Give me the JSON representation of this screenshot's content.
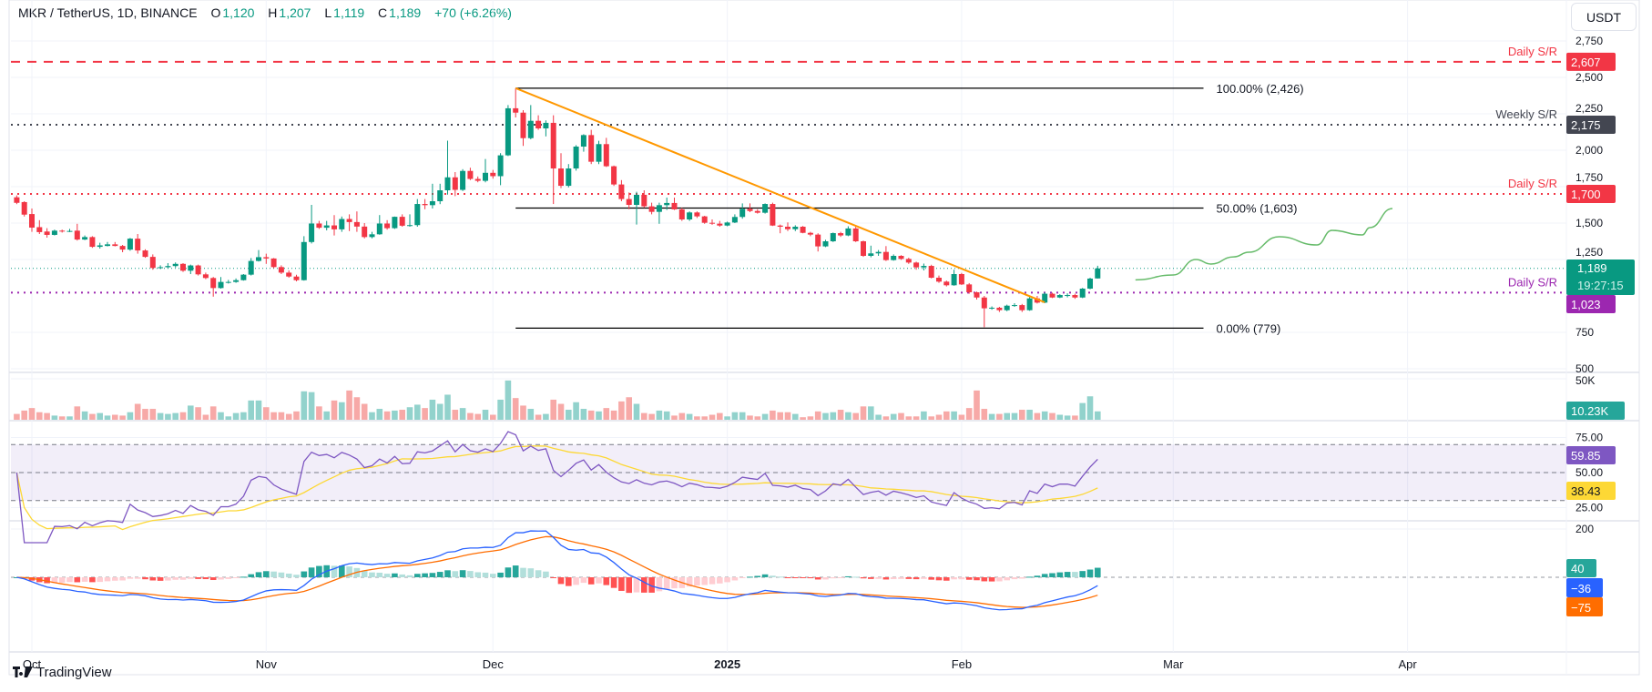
{
  "header": {
    "symbol": "MKR / TetherUS, 1D, BINANCE",
    "o_label": "O",
    "o": "1,120",
    "h_label": "H",
    "h": "1,207",
    "l_label": "L",
    "l": "1,119",
    "c_label": "C",
    "c": "1,189",
    "change": "+70 (+6.26%)"
  },
  "currency_button": "USDT",
  "branding": "TradingView",
  "colors": {
    "up": "#089981",
    "down": "#f23645",
    "volume_up": "#92d2cc",
    "volume_down": "#f7a9a7",
    "daily_sr": "#f23645",
    "weekly_sr": "#434651",
    "daily_sr_support": "#9c27b0",
    "trendline": "#ff9800",
    "projection": "#66bb6a",
    "rsi": "#7e57c2",
    "rsi_ma": "#fdd835",
    "macd": "#2962ff",
    "signal": "#ff6d00",
    "hist_up_strong": "#26a69a",
    "hist_up_weak": "#b2dfdb",
    "hist_down_strong": "#ff5252",
    "hist_down_weak": "#ffcdd2"
  },
  "chart_data": {
    "type": "candlestick",
    "title": "MKR / TetherUS, 1D, BINANCE",
    "columns": [
      "date",
      "open",
      "high",
      "low",
      "close",
      "volume_k"
    ],
    "candles": [
      [
        "2024-09-29",
        1677,
        1690,
        1630,
        1639,
        7.1
      ],
      [
        "2024-09-30",
        1644,
        1650,
        1545,
        1558,
        11.2
      ],
      [
        "2024-10-01",
        1562,
        1600,
        1440,
        1469,
        14.3
      ],
      [
        "2024-10-02",
        1472,
        1520,
        1425,
        1438,
        9.2
      ],
      [
        "2024-10-03",
        1442,
        1465,
        1400,
        1419,
        8.2
      ],
      [
        "2024-10-04",
        1419,
        1455,
        1415,
        1448,
        5.1
      ],
      [
        "2024-10-05",
        1448,
        1455,
        1435,
        1444,
        4.1
      ],
      [
        "2024-10-06",
        1444,
        1460,
        1438,
        1446,
        4.1
      ],
      [
        "2024-10-07",
        1448,
        1495,
        1380,
        1387,
        16.3
      ],
      [
        "2024-10-08",
        1387,
        1415,
        1383,
        1404,
        10.2
      ],
      [
        "2024-10-09",
        1404,
        1410,
        1330,
        1337,
        7.1
      ],
      [
        "2024-10-10",
        1337,
        1365,
        1325,
        1347,
        8.2
      ],
      [
        "2024-10-11",
        1343,
        1370,
        1340,
        1354,
        5.1
      ],
      [
        "2024-10-12",
        1354,
        1370,
        1340,
        1343,
        6.1
      ],
      [
        "2024-10-13",
        1343,
        1350,
        1300,
        1318,
        5.1
      ],
      [
        "2024-10-14",
        1318,
        1398,
        1310,
        1393,
        9.2
      ],
      [
        "2024-10-15",
        1393,
        1425,
        1290,
        1312,
        19.4
      ],
      [
        "2024-10-16",
        1312,
        1320,
        1262,
        1268,
        13.3
      ],
      [
        "2024-10-17",
        1268,
        1285,
        1180,
        1192,
        13.3
      ],
      [
        "2024-10-18",
        1192,
        1210,
        1185,
        1197,
        8.2
      ],
      [
        "2024-10-19",
        1197,
        1225,
        1190,
        1205,
        7.1
      ],
      [
        "2024-10-20",
        1205,
        1230,
        1195,
        1220,
        8.2
      ],
      [
        "2024-10-21",
        1220,
        1225,
        1165,
        1173,
        9.2
      ],
      [
        "2024-10-22",
        1173,
        1215,
        1150,
        1209,
        17.3
      ],
      [
        "2024-10-23",
        1209,
        1215,
        1140,
        1148,
        15.3
      ],
      [
        "2024-10-24",
        1148,
        1160,
        1115,
        1123,
        6.1
      ],
      [
        "2024-10-25",
        1123,
        1130,
        995,
        1054,
        16.3
      ],
      [
        "2024-10-26",
        1054,
        1130,
        1050,
        1096,
        9.2
      ],
      [
        "2024-10-27",
        1096,
        1110,
        1085,
        1096,
        4.1
      ],
      [
        "2024-10-28",
        1096,
        1120,
        1090,
        1108,
        8.2
      ],
      [
        "2024-10-29",
        1108,
        1150,
        1105,
        1146,
        9.2
      ],
      [
        "2024-10-30",
        1146,
        1260,
        1140,
        1240,
        23.5
      ],
      [
        "2024-10-31",
        1240,
        1315,
        1236,
        1266,
        23.5
      ],
      [
        "2024-11-01",
        1266,
        1290,
        1220,
        1257,
        15.3
      ],
      [
        "2024-11-02",
        1257,
        1260,
        1190,
        1198,
        9.2
      ],
      [
        "2024-11-03",
        1198,
        1210,
        1150,
        1160,
        9.2
      ],
      [
        "2024-11-04",
        1160,
        1175,
        1125,
        1133,
        7.1
      ],
      [
        "2024-11-05",
        1133,
        1145,
        1100,
        1108,
        10.2
      ],
      [
        "2024-11-06",
        1108,
        1410,
        1105,
        1370,
        34.7
      ],
      [
        "2024-11-07",
        1370,
        1625,
        1360,
        1497,
        33.7
      ],
      [
        "2024-11-08",
        1497,
        1515,
        1460,
        1468,
        16.3
      ],
      [
        "2024-11-09",
        1468,
        1515,
        1450,
        1484,
        10.2
      ],
      [
        "2024-11-10",
        1484,
        1555,
        1415,
        1457,
        23.5
      ],
      [
        "2024-11-11",
        1457,
        1545,
        1440,
        1528,
        21.4
      ],
      [
        "2024-11-12",
        1528,
        1560,
        1445,
        1507,
        35.7
      ],
      [
        "2024-11-13",
        1507,
        1580,
        1440,
        1476,
        27.5
      ],
      [
        "2024-11-14",
        1476,
        1500,
        1395,
        1404,
        19.4
      ],
      [
        "2024-11-15",
        1404,
        1440,
        1395,
        1423,
        9.2
      ],
      [
        "2024-11-16",
        1423,
        1555,
        1420,
        1497,
        13.3
      ],
      [
        "2024-11-17",
        1497,
        1520,
        1455,
        1465,
        10.2
      ],
      [
        "2024-11-18",
        1465,
        1545,
        1460,
        1543,
        11.2
      ],
      [
        "2024-11-19",
        1543,
        1560,
        1475,
        1482,
        12.2
      ],
      [
        "2024-11-20",
        1482,
        1560,
        1475,
        1486,
        15.3
      ],
      [
        "2024-11-21",
        1486,
        1665,
        1475,
        1631,
        18.4
      ],
      [
        "2024-11-22",
        1631,
        1665,
        1595,
        1623,
        14.3
      ],
      [
        "2024-11-23",
        1623,
        1770,
        1600,
        1650,
        24.5
      ],
      [
        "2024-11-24",
        1650,
        1770,
        1630,
        1725,
        19.4
      ],
      [
        "2024-11-25",
        1725,
        2066,
        1695,
        1814,
        30.6
      ],
      [
        "2024-11-26",
        1814,
        1850,
        1685,
        1728,
        12.2
      ],
      [
        "2024-11-27",
        1728,
        1870,
        1720,
        1858,
        14.3
      ],
      [
        "2024-11-28",
        1858,
        1880,
        1795,
        1803,
        8.2
      ],
      [
        "2024-11-29",
        1803,
        1820,
        1780,
        1790,
        7.1
      ],
      [
        "2024-11-30",
        1790,
        1940,
        1780,
        1845,
        12.2
      ],
      [
        "2024-12-01",
        1845,
        1865,
        1805,
        1822,
        6.1
      ],
      [
        "2024-12-02",
        1822,
        1980,
        1760,
        1965,
        24.5
      ],
      [
        "2024-12-03",
        1965,
        2310,
        1960,
        2288,
        47.9
      ],
      [
        "2024-12-04",
        2288,
        2426,
        2225,
        2258,
        26.5
      ],
      [
        "2024-12-05",
        2258,
        2275,
        2030,
        2083,
        17.3
      ],
      [
        "2024-12-06",
        2083,
        2310,
        2075,
        2202,
        13.3
      ],
      [
        "2024-12-07",
        2202,
        2240,
        2140,
        2150,
        6.1
      ],
      [
        "2024-12-08",
        2150,
        2205,
        2095,
        2188,
        7.1
      ],
      [
        "2024-12-09",
        2188,
        2240,
        1631,
        1875,
        24.5
      ],
      [
        "2024-12-10",
        1875,
        1980,
        1740,
        1756,
        19.4
      ],
      [
        "2024-12-11",
        1756,
        1905,
        1745,
        1875,
        12.2
      ],
      [
        "2024-12-12",
        1875,
        2035,
        1860,
        2025,
        21.4
      ],
      [
        "2024-12-13",
        2025,
        2110,
        1990,
        2104,
        13.3
      ],
      [
        "2024-12-14",
        2104,
        2140,
        1905,
        1921,
        11.2
      ],
      [
        "2024-12-15",
        1921,
        2065,
        1905,
        2042,
        10.2
      ],
      [
        "2024-12-16",
        2042,
        2085,
        1885,
        1890,
        14.3
      ],
      [
        "2024-12-17",
        1890,
        1895,
        1755,
        1765,
        11.2
      ],
      [
        "2024-12-18",
        1765,
        1795,
        1650,
        1665,
        22.4
      ],
      [
        "2024-12-19",
        1665,
        1710,
        1595,
        1625,
        27.5
      ],
      [
        "2024-12-20",
        1625,
        1715,
        1490,
        1694,
        19.4
      ],
      [
        "2024-12-21",
        1694,
        1725,
        1605,
        1615,
        8.2
      ],
      [
        "2024-12-22",
        1615,
        1640,
        1560,
        1577,
        7.1
      ],
      [
        "2024-12-23",
        1577,
        1640,
        1495,
        1623,
        11.2
      ],
      [
        "2024-12-24",
        1623,
        1675,
        1590,
        1638,
        10.2
      ],
      [
        "2024-12-25",
        1638,
        1675,
        1590,
        1594,
        5.1
      ],
      [
        "2024-12-26",
        1594,
        1605,
        1515,
        1525,
        8.2
      ],
      [
        "2024-12-27",
        1525,
        1580,
        1515,
        1573,
        7.1
      ],
      [
        "2024-12-28",
        1573,
        1580,
        1535,
        1546,
        4.1
      ],
      [
        "2024-12-29",
        1546,
        1550,
        1495,
        1502,
        4.1
      ],
      [
        "2024-12-30",
        1502,
        1525,
        1488,
        1496,
        6.1
      ],
      [
        "2024-12-31",
        1496,
        1515,
        1475,
        1483,
        8.2
      ],
      [
        "2025-01-01",
        1483,
        1510,
        1478,
        1504,
        4.1
      ],
      [
        "2025-01-02",
        1504,
        1560,
        1500,
        1542,
        9.2
      ],
      [
        "2025-01-03",
        1542,
        1635,
        1530,
        1598,
        9.2
      ],
      [
        "2025-01-04",
        1598,
        1635,
        1575,
        1583,
        5.1
      ],
      [
        "2025-01-05",
        1583,
        1595,
        1565,
        1571,
        4.1
      ],
      [
        "2025-01-06",
        1571,
        1635,
        1565,
        1631,
        7.1
      ],
      [
        "2025-01-07",
        1631,
        1640,
        1480,
        1483,
        11.2
      ],
      [
        "2025-01-08",
        1483,
        1490,
        1430,
        1475,
        9.2
      ],
      [
        "2025-01-09",
        1475,
        1505,
        1445,
        1458,
        9.2
      ],
      [
        "2025-01-10",
        1458,
        1485,
        1445,
        1475,
        7.1
      ],
      [
        "2025-01-11",
        1475,
        1480,
        1430,
        1433,
        3.1
      ],
      [
        "2025-01-12",
        1433,
        1440,
        1410,
        1421,
        4.1
      ],
      [
        "2025-01-13",
        1421,
        1430,
        1305,
        1340,
        10.2
      ],
      [
        "2025-01-14",
        1340,
        1385,
        1335,
        1375,
        8.2
      ],
      [
        "2025-01-15",
        1375,
        1435,
        1370,
        1431,
        9.2
      ],
      [
        "2025-01-16",
        1431,
        1440,
        1405,
        1415,
        12.2
      ],
      [
        "2025-01-17",
        1415,
        1478,
        1410,
        1463,
        9.2
      ],
      [
        "2025-01-18",
        1463,
        1475,
        1370,
        1375,
        8.2
      ],
      [
        "2025-01-19",
        1375,
        1380,
        1268,
        1275,
        16.3
      ],
      [
        "2025-01-20",
        1275,
        1345,
        1265,
        1292,
        16.3
      ],
      [
        "2025-01-21",
        1292,
        1315,
        1275,
        1302,
        6.1
      ],
      [
        "2025-01-22",
        1302,
        1342,
        1240,
        1246,
        4.1
      ],
      [
        "2025-01-23",
        1246,
        1285,
        1242,
        1275,
        7.1
      ],
      [
        "2025-01-24",
        1275,
        1280,
        1248,
        1254,
        8.2
      ],
      [
        "2025-01-25",
        1254,
        1262,
        1220,
        1229,
        4.1
      ],
      [
        "2025-01-26",
        1229,
        1235,
        1180,
        1196,
        4.1
      ],
      [
        "2025-01-27",
        1196,
        1222,
        1175,
        1206,
        10.2
      ],
      [
        "2025-01-28",
        1206,
        1214,
        1120,
        1125,
        4.1
      ],
      [
        "2025-01-29",
        1125,
        1140,
        1090,
        1098,
        6.1
      ],
      [
        "2025-01-30",
        1098,
        1105,
        1065,
        1073,
        10.2
      ],
      [
        "2025-01-31",
        1073,
        1180,
        1070,
        1150,
        10.2
      ],
      [
        "2025-02-01",
        1150,
        1158,
        1075,
        1079,
        6.1
      ],
      [
        "2025-02-02",
        1079,
        1088,
        1015,
        1025,
        14.3
      ],
      [
        "2025-02-03",
        1025,
        1030,
        975,
        989,
        35.7
      ],
      [
        "2025-02-04",
        989,
        1000,
        785,
        915,
        13.3
      ],
      [
        "2025-02-05",
        915,
        928,
        905,
        919,
        7.1
      ],
      [
        "2025-02-06",
        919,
        925,
        890,
        902,
        7.1
      ],
      [
        "2025-02-07",
        902,
        940,
        895,
        933,
        8.2
      ],
      [
        "2025-02-08",
        933,
        950,
        925,
        937,
        8.2
      ],
      [
        "2025-02-09",
        937,
        945,
        890,
        902,
        12.2
      ],
      [
        "2025-02-10",
        902,
        995,
        898,
        983,
        12.2
      ],
      [
        "2025-02-11",
        983,
        1000,
        948,
        954,
        8.2
      ],
      [
        "2025-02-12",
        954,
        1025,
        950,
        1015,
        10.2
      ],
      [
        "2025-02-13",
        1015,
        1022,
        985,
        989,
        8.2
      ],
      [
        "2025-02-14",
        989,
        1012,
        985,
        1006,
        6.1
      ],
      [
        "2025-02-15",
        1006,
        1018,
        990,
        1006,
        5.1
      ],
      [
        "2025-02-16",
        1006,
        1015,
        980,
        989,
        5.1
      ],
      [
        "2025-02-17",
        989,
        1055,
        985,
        1050,
        20.4
      ],
      [
        "2025-02-18",
        1050,
        1125,
        1045,
        1119,
        28.6
      ],
      [
        "2025-02-19",
        1120,
        1207,
        1119,
        1189,
        10.23
      ]
    ],
    "price_axis": {
      "ticks": [
        2750,
        2500,
        2250,
        2000,
        1750,
        1500,
        1250,
        750,
        500
      ],
      "labels": [
        "2,750",
        "2,500",
        "2,250",
        "2,000",
        "1,750",
        "1,500",
        "1,250",
        "750",
        "500"
      ]
    },
    "time_axis": [
      {
        "date": "2024-10-01",
        "label": "Oct"
      },
      {
        "date": "2024-11-01",
        "label": "Nov"
      },
      {
        "date": "2024-12-01",
        "label": "Dec"
      },
      {
        "date": "2025-01-01",
        "label": "2025",
        "bold": true
      },
      {
        "date": "2025-02-01",
        "label": "Feb"
      },
      {
        "date": "2025-03-01",
        "label": "Mar"
      },
      {
        "date": "2025-04-01",
        "label": "Apr"
      }
    ],
    "levels": [
      {
        "label": "Daily S/R",
        "price": 2607,
        "tag": "2,607",
        "style": "dashed",
        "color": "#f23645"
      },
      {
        "label": "Weekly S/R",
        "price": 2175,
        "tag": "2,175",
        "style": "dotted",
        "color": "#434651"
      },
      {
        "label": "Daily S/R",
        "price": 1700,
        "tag": "1,700",
        "style": "dotted",
        "color": "#f23645"
      },
      {
        "label": "Daily S/R",
        "price": 1023,
        "tag": "1,023",
        "style": "dotted",
        "color": "#9c27b0"
      }
    ],
    "last_price": {
      "price": 1189,
      "tag": "1,189",
      "countdown": "19:27:15"
    },
    "fibonacci": {
      "start": "2024-12-04",
      "end": "2025-03-05",
      "levels": [
        {
          "price": 2426,
          "label": "100.00% (2,426)"
        },
        {
          "price": 1603,
          "label": "50.00% (1,603)"
        },
        {
          "price": 779,
          "label": "0.00% (779)"
        }
      ]
    },
    "trendline": {
      "from": {
        "date": "2024-12-04",
        "price": 2426
      },
      "to": {
        "date": "2025-02-12",
        "price": 956
      }
    },
    "projection": [
      [
        "2025-02-24",
        1110
      ],
      [
        "2025-03-01",
        1144
      ],
      [
        "2025-03-04",
        1250
      ],
      [
        "2025-03-06",
        1219
      ],
      [
        "2025-03-09",
        1268
      ],
      [
        "2025-03-11",
        1300
      ],
      [
        "2025-03-15",
        1406
      ],
      [
        "2025-03-20",
        1350
      ],
      [
        "2025-03-22",
        1450
      ],
      [
        "2025-03-26",
        1419
      ],
      [
        "2025-03-27",
        1469
      ],
      [
        "2025-03-30",
        1600
      ]
    ],
    "volume": {
      "axis_label": "50K",
      "last_label": "10.23K"
    },
    "rsi": {
      "ticks": [
        75,
        50,
        25
      ],
      "tick_labels": [
        "75.00",
        "50.00",
        "25.00"
      ],
      "bands": [
        70,
        50,
        30
      ],
      "value_label": "59.85",
      "ma_label": "38.43"
    },
    "macd": {
      "tick_labels": [
        "200"
      ],
      "hist_label": "40",
      "macd_label": "−36",
      "signal_label": "−75"
    }
  }
}
